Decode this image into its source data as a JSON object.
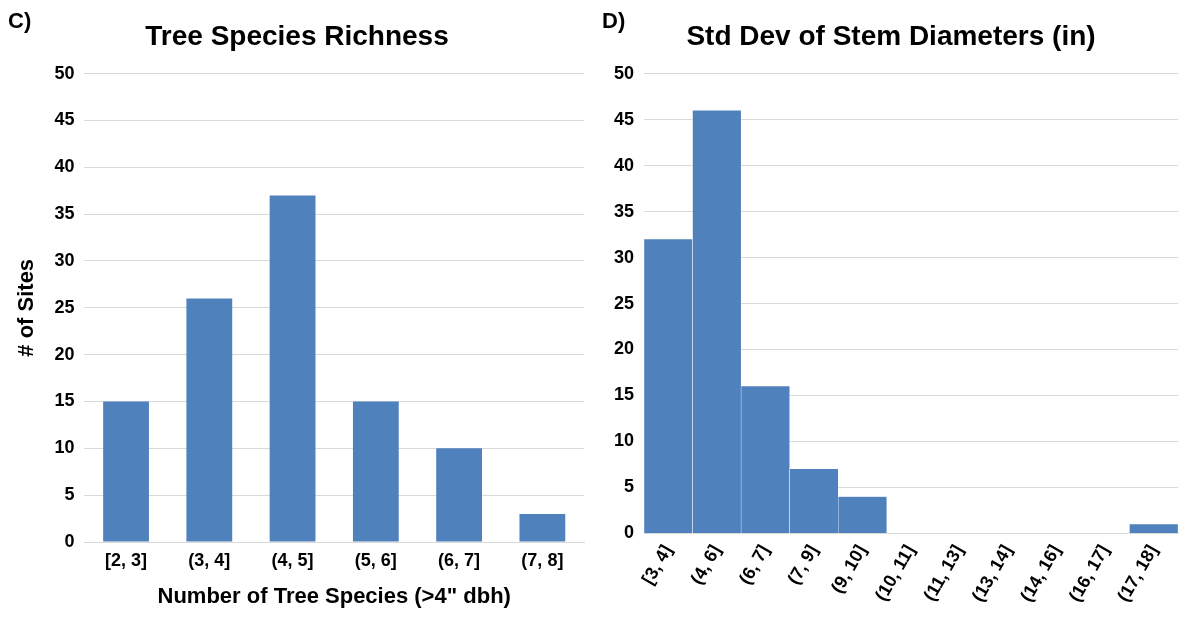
{
  "chart_data": [
    {
      "type": "bar",
      "title": "Tree Species Richness",
      "annotations": [
        "C)"
      ],
      "xlabel": "Number of Tree Species (>4\" dbh)",
      "ylabel": "# of Sites",
      "categories": [
        "[2, 3]",
        "(3, 4]",
        "(4, 5]",
        "(5, 6]",
        "(6, 7]",
        "(7, 8]"
      ],
      "values": [
        15,
        26,
        37,
        15,
        10,
        3
      ],
      "color": "#4f81bd",
      "ylim": [
        0,
        50
      ],
      "yticks": [
        0,
        5,
        10,
        15,
        20,
        25,
        30,
        35,
        40,
        45,
        50
      ],
      "grid": "y"
    },
    {
      "type": "bar",
      "title": "Std Dev of Stem Diameters (in)",
      "annotations": [
        "D)"
      ],
      "categories": [
        "[3, 4]",
        "(4, 6]",
        "(6, 7]",
        "(7, 9]",
        "(9, 10]",
        "(10, 11]",
        "(11, 13]",
        "(13, 14]",
        "(14, 16]",
        "(16, 17]",
        "(17, 18]"
      ],
      "values": [
        32,
        46,
        16,
        7,
        4,
        0,
        0,
        0,
        0,
        0,
        1
      ],
      "color": "#4f81bd",
      "ylim": [
        0,
        50
      ],
      "yticks": [
        0,
        5,
        10,
        15,
        20,
        25,
        30,
        35,
        40,
        45,
        50
      ],
      "grid": "y"
    }
  ]
}
